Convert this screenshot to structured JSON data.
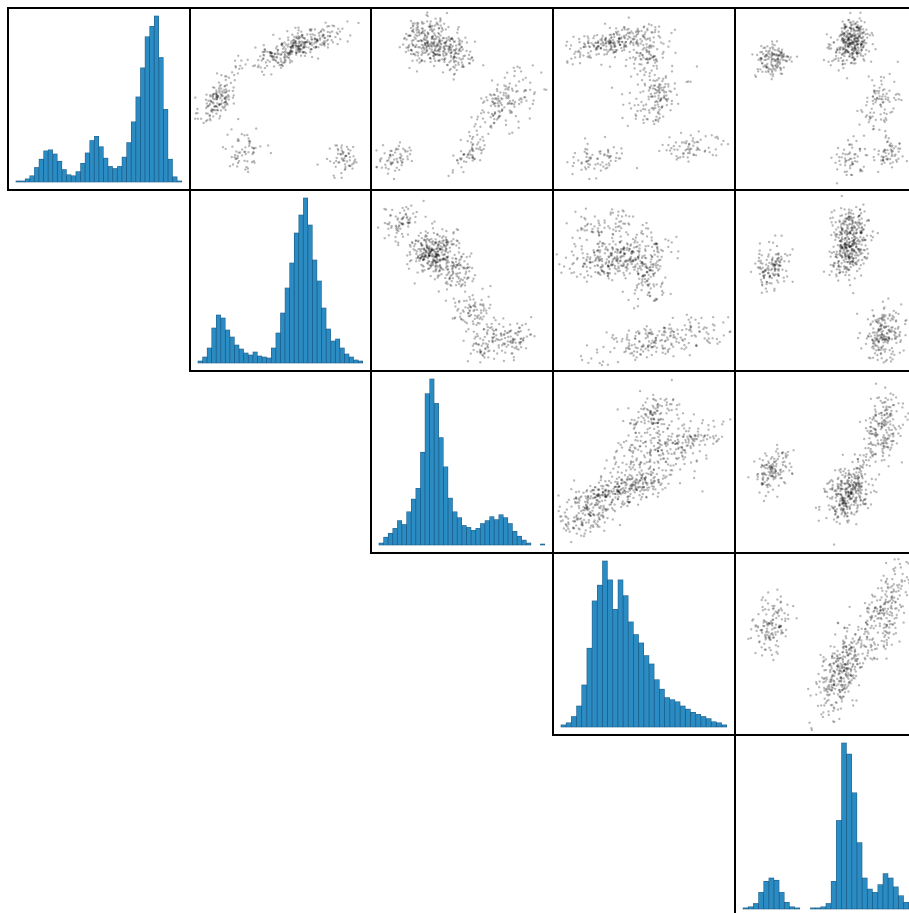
{
  "chart_data": {
    "type": "scatter-matrix",
    "layout": "upper-triangle",
    "n_variables": 5,
    "title": "",
    "colors": {
      "histogram": "#2b8cc4",
      "histogram_edge": "#1a5e8a",
      "points": "#000000",
      "frame": "#000000"
    },
    "grid": false,
    "legend": "none",
    "histograms": [
      {
        "variable": 1,
        "values": [
          1,
          1,
          3,
          6,
          14,
          22,
          30,
          31,
          27,
          20,
          12,
          7,
          6,
          10,
          18,
          28,
          40,
          44,
          34,
          23,
          15,
          13,
          15,
          24,
          38,
          58,
          82,
          110,
          140,
          150,
          160,
          120,
          70,
          22,
          5,
          1
        ]
      },
      {
        "variable": 2,
        "values": [
          2,
          6,
          15,
          35,
          48,
          45,
          33,
          26,
          18,
          14,
          10,
          8,
          11,
          7,
          6,
          5,
          15,
          30,
          50,
          75,
          100,
          130,
          148,
          165,
          138,
          103,
          82,
          55,
          34,
          22,
          24,
          15,
          9,
          6,
          3,
          2
        ]
      },
      {
        "variable": 3,
        "values": [
          2,
          8,
          12,
          17,
          25,
          21,
          34,
          47,
          58,
          95,
          155,
          170,
          145,
          110,
          80,
          48,
          34,
          28,
          20,
          18,
          15,
          17,
          22,
          25,
          29,
          26,
          31,
          28,
          22,
          14,
          9,
          5,
          2,
          0,
          0,
          1
        ]
      },
      {
        "variable": 4,
        "values": [
          2,
          4,
          10,
          20,
          40,
          75,
          120,
          135,
          158,
          140,
          112,
          140,
          125,
          100,
          88,
          80,
          68,
          60,
          45,
          36,
          28,
          26,
          24,
          20,
          17,
          14,
          12,
          10,
          8,
          5,
          4,
          2
        ]
      },
      {
        "variable": 5,
        "values": [
          1,
          2,
          5,
          15,
          25,
          28,
          26,
          15,
          6,
          2,
          1,
          0,
          0,
          1,
          1,
          2,
          5,
          25,
          80,
          150,
          140,
          105,
          60,
          28,
          18,
          15,
          22,
          32,
          28,
          20,
          12,
          6
        ]
      }
    ],
    "scatter": [
      {
        "row": 1,
        "col": 2,
        "clusters": [
          {
            "cx": 0.15,
            "cy": 0.5,
            "sx": 0.05,
            "sy": 0.07,
            "r": 0.6,
            "n": 140
          },
          {
            "cx": 0.6,
            "cy": 0.21,
            "sx": 0.13,
            "sy": 0.06,
            "r": 0.75,
            "n": 320
          },
          {
            "cx": 0.3,
            "cy": 0.78,
            "sx": 0.05,
            "sy": 0.06,
            "r": 0.2,
            "n": 60
          },
          {
            "cx": 0.85,
            "cy": 0.83,
            "sx": 0.05,
            "sy": 0.05,
            "r": 0.2,
            "n": 60
          }
        ]
      },
      {
        "row": 1,
        "col": 3,
        "clusters": [
          {
            "cx": 0.32,
            "cy": 0.18,
            "sx": 0.07,
            "sy": 0.06,
            "r": 0.0,
            "n": 260
          },
          {
            "cx": 0.46,
            "cy": 0.26,
            "sx": 0.06,
            "sy": 0.06,
            "r": -0.3,
            "n": 110
          },
          {
            "cx": 0.73,
            "cy": 0.52,
            "sx": 0.08,
            "sy": 0.08,
            "r": 0.5,
            "n": 150
          },
          {
            "cx": 0.13,
            "cy": 0.83,
            "sx": 0.045,
            "sy": 0.05,
            "r": 0.3,
            "n": 60
          },
          {
            "cx": 0.55,
            "cy": 0.78,
            "sx": 0.05,
            "sy": 0.05,
            "r": 0.6,
            "n": 60
          }
        ]
      },
      {
        "row": 1,
        "col": 4,
        "clusters": [
          {
            "cx": 0.33,
            "cy": 0.19,
            "sx": 0.13,
            "sy": 0.045,
            "r": 0.6,
            "n": 230
          },
          {
            "cx": 0.52,
            "cy": 0.27,
            "sx": 0.05,
            "sy": 0.06,
            "r": 0.0,
            "n": 100
          },
          {
            "cx": 0.57,
            "cy": 0.5,
            "sx": 0.07,
            "sy": 0.07,
            "r": 0.4,
            "n": 130
          },
          {
            "cx": 0.23,
            "cy": 0.83,
            "sx": 0.09,
            "sy": 0.05,
            "r": 0.3,
            "n": 70
          },
          {
            "cx": 0.75,
            "cy": 0.77,
            "sx": 0.09,
            "sy": 0.05,
            "r": 0.4,
            "n": 70
          }
        ]
      },
      {
        "row": 1,
        "col": 5,
        "clusters": [
          {
            "cx": 0.21,
            "cy": 0.29,
            "sx": 0.05,
            "sy": 0.05,
            "r": 0.0,
            "n": 140
          },
          {
            "cx": 0.64,
            "cy": 0.19,
            "sx": 0.05,
            "sy": 0.06,
            "r": 0.2,
            "n": 320
          },
          {
            "cx": 0.8,
            "cy": 0.52,
            "sx": 0.05,
            "sy": 0.07,
            "r": 0.3,
            "n": 90
          },
          {
            "cx": 0.62,
            "cy": 0.83,
            "sx": 0.045,
            "sy": 0.05,
            "r": 0.2,
            "n": 60
          },
          {
            "cx": 0.85,
            "cy": 0.79,
            "sx": 0.04,
            "sy": 0.05,
            "r": 0.2,
            "n": 60
          }
        ]
      },
      {
        "row": 2,
        "col": 3,
        "clusters": [
          {
            "cx": 0.17,
            "cy": 0.17,
            "sx": 0.05,
            "sy": 0.05,
            "r": 0.3,
            "n": 70
          },
          {
            "cx": 0.34,
            "cy": 0.34,
            "sx": 0.06,
            "sy": 0.06,
            "r": 0.0,
            "n": 300
          },
          {
            "cx": 0.47,
            "cy": 0.45,
            "sx": 0.05,
            "sy": 0.06,
            "r": 0.0,
            "n": 100
          },
          {
            "cx": 0.55,
            "cy": 0.67,
            "sx": 0.05,
            "sy": 0.05,
            "r": -0.3,
            "n": 80
          },
          {
            "cx": 0.7,
            "cy": 0.83,
            "sx": 0.09,
            "sy": 0.05,
            "r": 0.2,
            "n": 150
          }
        ]
      },
      {
        "row": 2,
        "col": 4,
        "clusters": [
          {
            "cx": 0.3,
            "cy": 0.2,
            "sx": 0.09,
            "sy": 0.05,
            "r": 0.2,
            "n": 80
          },
          {
            "cx": 0.37,
            "cy": 0.37,
            "sx": 0.14,
            "sy": 0.055,
            "r": 0.4,
            "n": 320
          },
          {
            "cx": 0.52,
            "cy": 0.49,
            "sx": 0.06,
            "sy": 0.06,
            "r": 0.0,
            "n": 90
          },
          {
            "cx": 0.62,
            "cy": 0.82,
            "sx": 0.2,
            "sy": 0.06,
            "r": 0.65,
            "n": 220
          }
        ]
      },
      {
        "row": 2,
        "col": 5,
        "clusters": [
          {
            "cx": 0.2,
            "cy": 0.43,
            "sx": 0.05,
            "sy": 0.06,
            "r": 0.3,
            "n": 130
          },
          {
            "cx": 0.63,
            "cy": 0.32,
            "sx": 0.05,
            "sy": 0.08,
            "r": 0.3,
            "n": 320
          },
          {
            "cx": 0.62,
            "cy": 0.18,
            "sx": 0.05,
            "sy": 0.05,
            "r": 0.2,
            "n": 80
          },
          {
            "cx": 0.82,
            "cy": 0.8,
            "sx": 0.05,
            "sy": 0.08,
            "r": 0.3,
            "n": 200
          }
        ]
      },
      {
        "row": 3,
        "col": 4,
        "clusters": [
          {
            "cx": 0.38,
            "cy": 0.65,
            "sx": 0.14,
            "sy": 0.055,
            "r": 0.6,
            "n": 330
          },
          {
            "cx": 0.2,
            "cy": 0.8,
            "sx": 0.08,
            "sy": 0.05,
            "r": 0.3,
            "n": 130
          },
          {
            "cx": 0.55,
            "cy": 0.45,
            "sx": 0.12,
            "sy": 0.06,
            "r": 0.5,
            "n": 160
          },
          {
            "cx": 0.55,
            "cy": 0.25,
            "sx": 0.08,
            "sy": 0.06,
            "r": 0.3,
            "n": 130
          },
          {
            "cx": 0.78,
            "cy": 0.37,
            "sx": 0.08,
            "sy": 0.06,
            "r": 0.3,
            "n": 80
          }
        ]
      },
      {
        "row": 3,
        "col": 5,
        "clusters": [
          {
            "cx": 0.2,
            "cy": 0.55,
            "sx": 0.05,
            "sy": 0.06,
            "r": 0.3,
            "n": 130
          },
          {
            "cx": 0.62,
            "cy": 0.68,
            "sx": 0.06,
            "sy": 0.08,
            "r": 0.4,
            "n": 330
          },
          {
            "cx": 0.81,
            "cy": 0.32,
            "sx": 0.06,
            "sy": 0.1,
            "r": 0.4,
            "n": 200
          }
        ]
      },
      {
        "row": 4,
        "col": 5,
        "clusters": [
          {
            "cx": 0.2,
            "cy": 0.4,
            "sx": 0.05,
            "sy": 0.08,
            "r": 0.3,
            "n": 130
          },
          {
            "cx": 0.58,
            "cy": 0.66,
            "sx": 0.07,
            "sy": 0.12,
            "r": 0.6,
            "n": 330
          },
          {
            "cx": 0.82,
            "cy": 0.32,
            "sx": 0.07,
            "sy": 0.13,
            "r": 0.6,
            "n": 220
          }
        ]
      }
    ]
  }
}
